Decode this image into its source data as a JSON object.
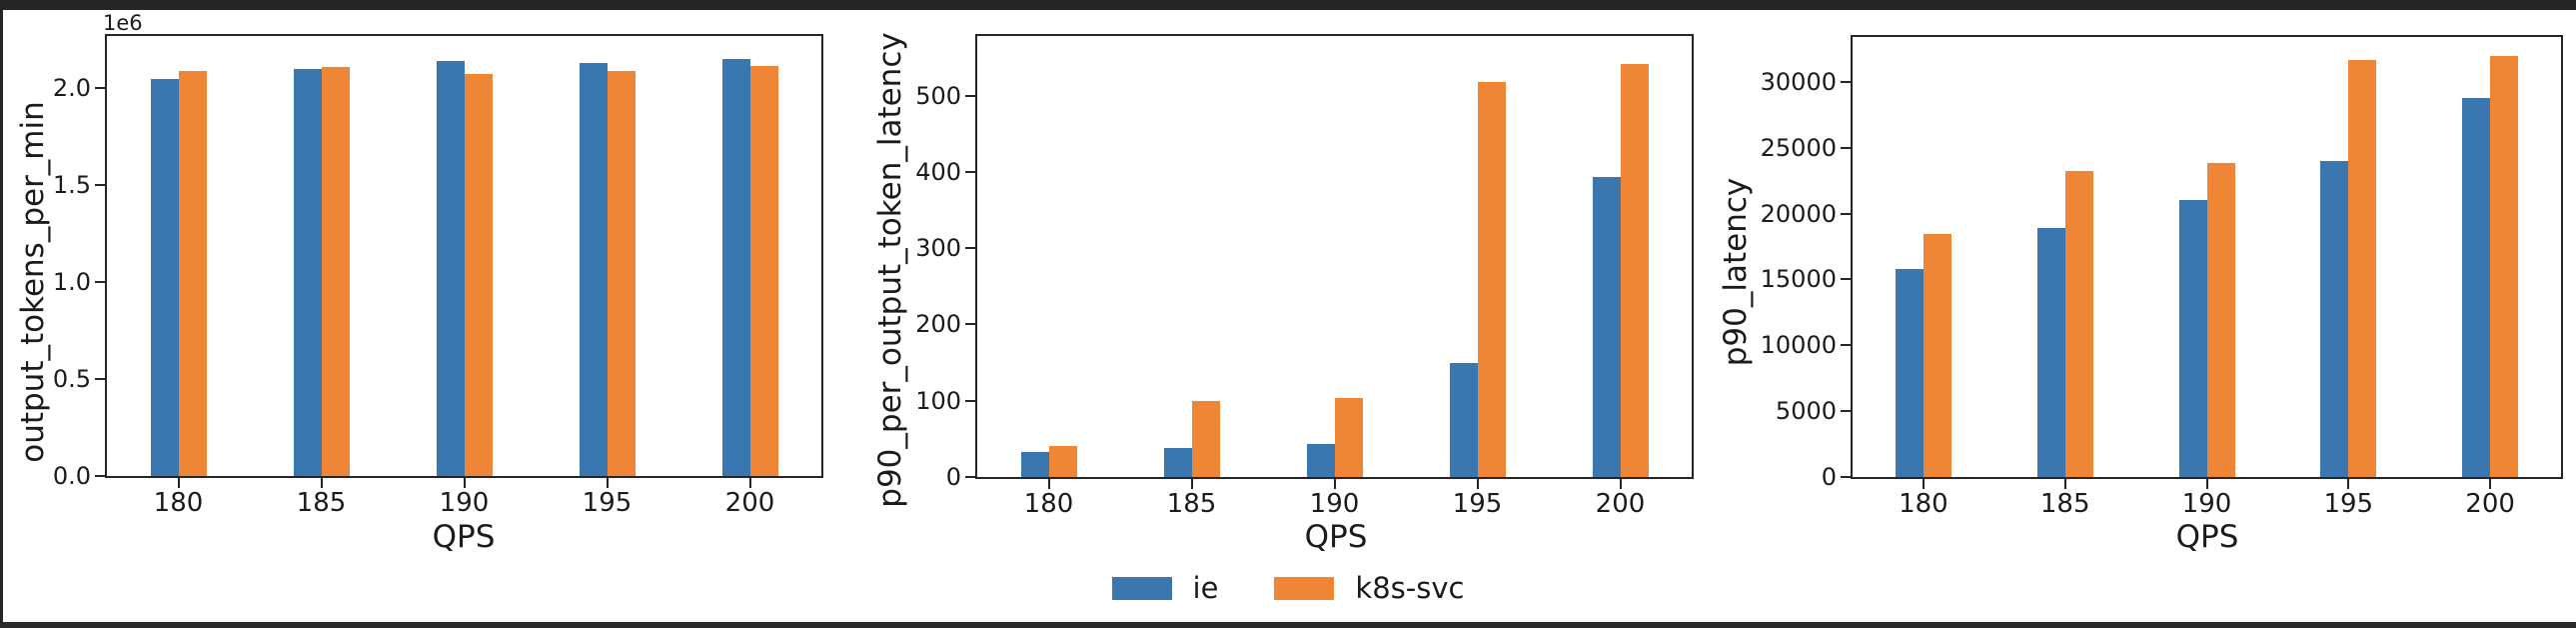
{
  "figure": {
    "background": "#ffffff",
    "frame_color": "#262626"
  },
  "legend": {
    "items": [
      {
        "label": "ie",
        "color": "#3A76AF"
      },
      {
        "label": "k8s-svc",
        "color": "#EF8636"
      }
    ]
  },
  "chart_data": [
    {
      "type": "bar",
      "title": "",
      "ylabel": "output_tokens_per_min",
      "xlabel": "QPS",
      "offset_text": "1e6",
      "categories": [
        "180",
        "185",
        "190",
        "195",
        "200"
      ],
      "series": [
        {
          "name": "ie",
          "color": "#3A76AF",
          "values": [
            2050000,
            2100000,
            2140000,
            2130000,
            2150000
          ]
        },
        {
          "name": "k8s-svc",
          "color": "#EF8636",
          "values": [
            2090000,
            2110000,
            2075000,
            2090000,
            2115000
          ]
        }
      ],
      "ylim": [
        0,
        2270000
      ],
      "yticks": [
        {
          "value": 0,
          "label": "0.0"
        },
        {
          "value": 500000,
          "label": "0.5"
        },
        {
          "value": 1000000,
          "label": "1.0"
        },
        {
          "value": 1500000,
          "label": "1.5"
        },
        {
          "value": 2000000,
          "label": "2.0"
        }
      ],
      "grid": false,
      "legend_position": "bottom-center-shared"
    },
    {
      "type": "bar",
      "title": "",
      "ylabel": "p90_per_output_token_latency",
      "xlabel": "QPS",
      "offset_text": "",
      "categories": [
        "180",
        "185",
        "190",
        "195",
        "200"
      ],
      "series": [
        {
          "name": "ie",
          "color": "#3A76AF",
          "values": [
            33,
            38,
            43,
            150,
            393
          ]
        },
        {
          "name": "k8s-svc",
          "color": "#EF8636",
          "values": [
            40,
            100,
            104,
            518,
            541
          ]
        }
      ],
      "ylim": [
        0,
        578
      ],
      "yticks": [
        {
          "value": 0,
          "label": "0"
        },
        {
          "value": 100,
          "label": "100"
        },
        {
          "value": 200,
          "label": "200"
        },
        {
          "value": 300,
          "label": "300"
        },
        {
          "value": 400,
          "label": "400"
        },
        {
          "value": 500,
          "label": "500"
        }
      ],
      "grid": false,
      "legend_position": "bottom-center-shared"
    },
    {
      "type": "bar",
      "title": "",
      "ylabel": "p90_latency",
      "xlabel": "QPS",
      "offset_text": "",
      "categories": [
        "180",
        "185",
        "190",
        "195",
        "200"
      ],
      "series": [
        {
          "name": "ie",
          "color": "#3A76AF",
          "values": [
            15800,
            18900,
            21000,
            24000,
            28750
          ]
        },
        {
          "name": "k8s-svc",
          "color": "#EF8636",
          "values": [
            18450,
            23250,
            23800,
            31650,
            31950
          ]
        }
      ],
      "ylim": [
        0,
        33400
      ],
      "yticks": [
        {
          "value": 0,
          "label": "0"
        },
        {
          "value": 5000,
          "label": "5000"
        },
        {
          "value": 10000,
          "label": "10000"
        },
        {
          "value": 15000,
          "label": "15000"
        },
        {
          "value": 20000,
          "label": "20000"
        },
        {
          "value": 25000,
          "label": "25000"
        },
        {
          "value": 30000,
          "label": "30000"
        }
      ],
      "grid": false,
      "legend_position": "bottom-center-shared"
    }
  ]
}
